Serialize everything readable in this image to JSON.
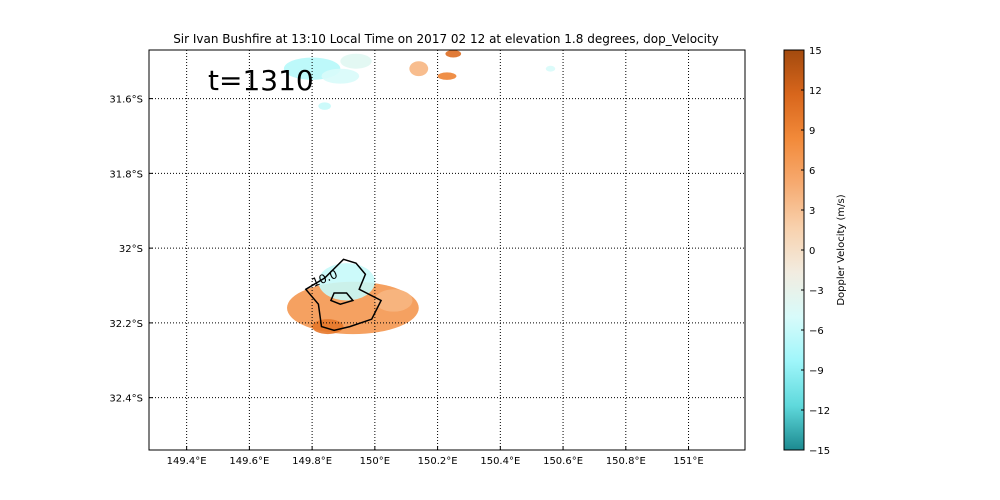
{
  "chart_data": {
    "type": "heatmap",
    "title": "Sir Ivan Bushfire at 13:10 Local Time on 2017 02 12 at elevation 1.8 degrees, dop_Velocity",
    "annotation": "t=1310",
    "contour_label": "10.0",
    "xlim": [
      149.28,
      151.18
    ],
    "ylim": [
      -32.54,
      -31.47
    ],
    "x_ticks": [
      {
        "value": 149.4,
        "label": "149.4°E"
      },
      {
        "value": 149.6,
        "label": "149.6°E"
      },
      {
        "value": 149.8,
        "label": "149.8°E"
      },
      {
        "value": 150.0,
        "label": "150°E"
      },
      {
        "value": 150.2,
        "label": "150.2°E"
      },
      {
        "value": 150.4,
        "label": "150.4°E"
      },
      {
        "value": 150.6,
        "label": "150.6°E"
      },
      {
        "value": 150.8,
        "label": "150.8°E"
      },
      {
        "value": 151.0,
        "label": "151°E"
      }
    ],
    "y_ticks": [
      {
        "value": -31.6,
        "label": "31.6°S"
      },
      {
        "value": -31.8,
        "label": "31.8°S"
      },
      {
        "value": -32.0,
        "label": "32°S"
      },
      {
        "value": -32.2,
        "label": "32.2°S"
      },
      {
        "value": -32.4,
        "label": "32.4°S"
      }
    ],
    "grid": true,
    "grid_style": "dotted",
    "colorbar": {
      "label": "Doppler Velocity (m/s)",
      "range": [
        -15,
        15
      ],
      "ticks": [
        15,
        12,
        9,
        6,
        3,
        0,
        -3,
        -6,
        -9,
        -12,
        -15
      ],
      "colors": [
        "#1c8a90",
        "#5fd9dc",
        "#9ff6fa",
        "#d8fbfa",
        "#f2ece0",
        "#f8d1ad",
        "#f6aa70",
        "#f28a3a",
        "#d8661c",
        "#a34a0e"
      ]
    },
    "regions": [
      {
        "lon": 149.93,
        "lat": -32.16,
        "dlon": 0.21,
        "dlat": 0.07,
        "velocity": 7
      },
      {
        "lon": 149.91,
        "lat": -32.09,
        "dlon": 0.09,
        "dlat": 0.05,
        "velocity": -6
      },
      {
        "lon": 150.06,
        "lat": -32.14,
        "dlon": 0.06,
        "dlat": 0.03,
        "velocity": 4
      },
      {
        "lon": 149.85,
        "lat": -32.21,
        "dlon": 0.05,
        "dlat": 0.02,
        "velocity": 10
      },
      {
        "lon": 149.8,
        "lat": -31.52,
        "dlon": 0.09,
        "dlat": 0.03,
        "velocity": -7
      },
      {
        "lon": 149.89,
        "lat": -31.54,
        "dlon": 0.06,
        "dlat": 0.02,
        "velocity": -5
      },
      {
        "lon": 149.94,
        "lat": -31.5,
        "dlon": 0.05,
        "dlat": 0.02,
        "velocity": -4
      },
      {
        "lon": 149.84,
        "lat": -31.62,
        "dlon": 0.02,
        "dlat": 0.01,
        "velocity": -6
      },
      {
        "lon": 150.14,
        "lat": -31.52,
        "dlon": 0.03,
        "dlat": 0.02,
        "velocity": 4
      },
      {
        "lon": 150.23,
        "lat": -31.54,
        "dlon": 0.03,
        "dlat": 0.01,
        "velocity": 9
      },
      {
        "lon": 150.25,
        "lat": -31.48,
        "dlon": 0.025,
        "dlat": 0.01,
        "velocity": 11
      },
      {
        "lon": 150.56,
        "lat": -31.52,
        "dlon": 0.015,
        "dlat": 0.008,
        "velocity": -5
      }
    ],
    "contour": [
      [
        149.78,
        -32.11
      ],
      [
        149.84,
        -32.08
      ],
      [
        149.9,
        -32.03
      ],
      [
        149.94,
        -32.04
      ],
      [
        149.97,
        -32.07
      ],
      [
        149.95,
        -32.11
      ],
      [
        150.02,
        -32.14
      ],
      [
        149.99,
        -32.19
      ],
      [
        149.92,
        -32.21
      ],
      [
        149.87,
        -32.22
      ],
      [
        149.83,
        -32.21
      ],
      [
        149.82,
        -32.15
      ],
      [
        149.78,
        -32.11
      ]
    ],
    "contour_inner": [
      [
        149.87,
        -32.12
      ],
      [
        149.91,
        -32.12
      ],
      [
        149.93,
        -32.14
      ],
      [
        149.89,
        -32.15
      ],
      [
        149.86,
        -32.14
      ],
      [
        149.87,
        -32.12
      ]
    ]
  }
}
